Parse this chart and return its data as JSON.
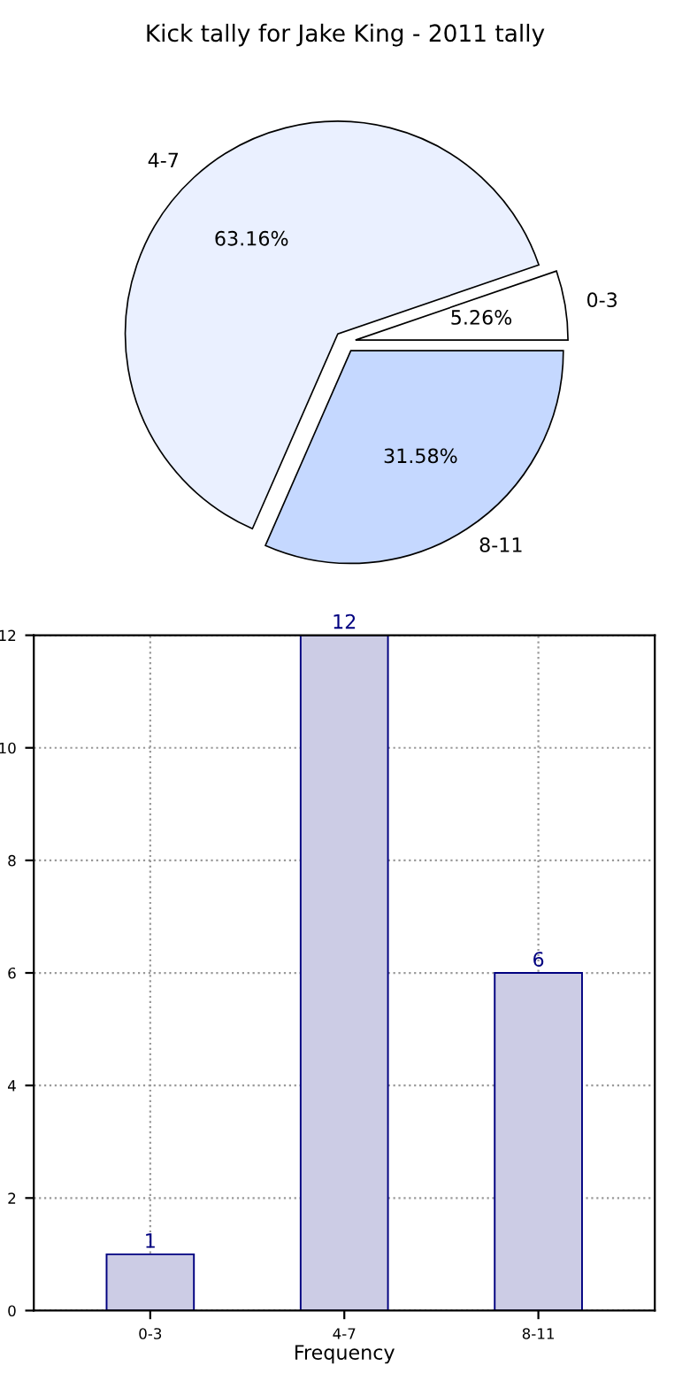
{
  "chart_data": [
    {
      "type": "pie",
      "title": "Kick tally for Jake King - 2011 tally",
      "categories": [
        "0-3",
        "4-7",
        "8-11"
      ],
      "values": [
        5.26,
        63.16,
        31.58
      ],
      "value_labels": [
        "5.26%",
        "63.16%",
        "31.58%"
      ],
      "colors": [
        "#ffffff",
        "#eaf0ff",
        "#c5d8ff"
      ]
    },
    {
      "type": "bar",
      "categories": [
        "0-3",
        "4-7",
        "8-11"
      ],
      "values": [
        1,
        12,
        6
      ],
      "color": "#ccccE5",
      "data_labels": true,
      "xlabel": "Frequency",
      "ylim": [
        0,
        12
      ],
      "yticks": [
        0,
        2,
        4,
        6,
        8,
        10,
        12
      ],
      "grid": true
    }
  ]
}
